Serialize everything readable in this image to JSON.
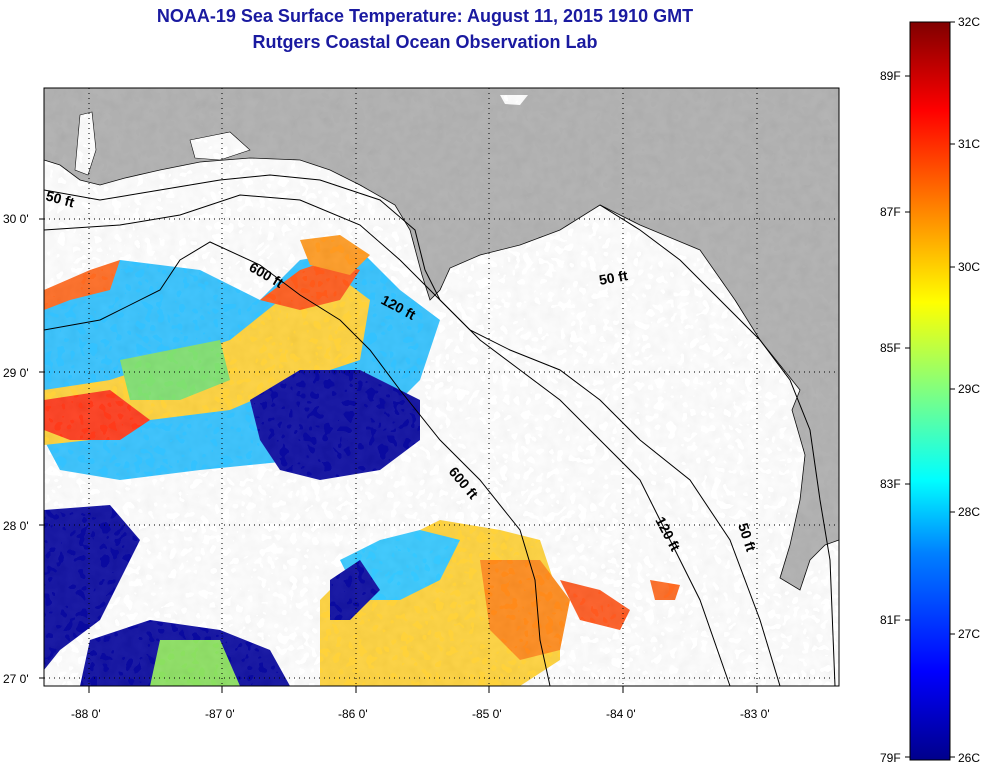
{
  "title": {
    "line1": "NOAA-19 Sea Surface Temperature:  August 11, 2015 1910 GMT",
    "line2": "Rutgers Coastal Ocean Observation Lab"
  },
  "map": {
    "lat_labels": [
      "30 0'",
      "29 0'",
      "28 0'",
      "27 0'"
    ],
    "lon_labels": [
      "-88 0'",
      "-87 0'",
      "-86 0'",
      "-85 0'",
      "-84 0'",
      "-83 0'"
    ],
    "contour_labels": {
      "fifty_a": "50 ft",
      "fifty_b": "50 ft",
      "fifty_c": "50 ft",
      "six_a": "600 ft",
      "six_b": "600 ft",
      "one_a": "120 ft",
      "one_b": "120 ft"
    },
    "colors": {
      "land": "#b0b0b0",
      "water_cloud": "#ffffff",
      "contour": "#000000"
    }
  },
  "colorbar": {
    "celsius": [
      "32C",
      "31C",
      "30C",
      "29C",
      "28C",
      "27C",
      "26C"
    ],
    "fahrenheit": [
      "89F",
      "87F",
      "85F",
      "83F",
      "81F",
      "79F"
    ],
    "stops": [
      "#00008b",
      "#0000ff",
      "#0080ff",
      "#00ffff",
      "#80ff80",
      "#ffff00",
      "#ff8000",
      "#ff0000",
      "#800000"
    ]
  }
}
